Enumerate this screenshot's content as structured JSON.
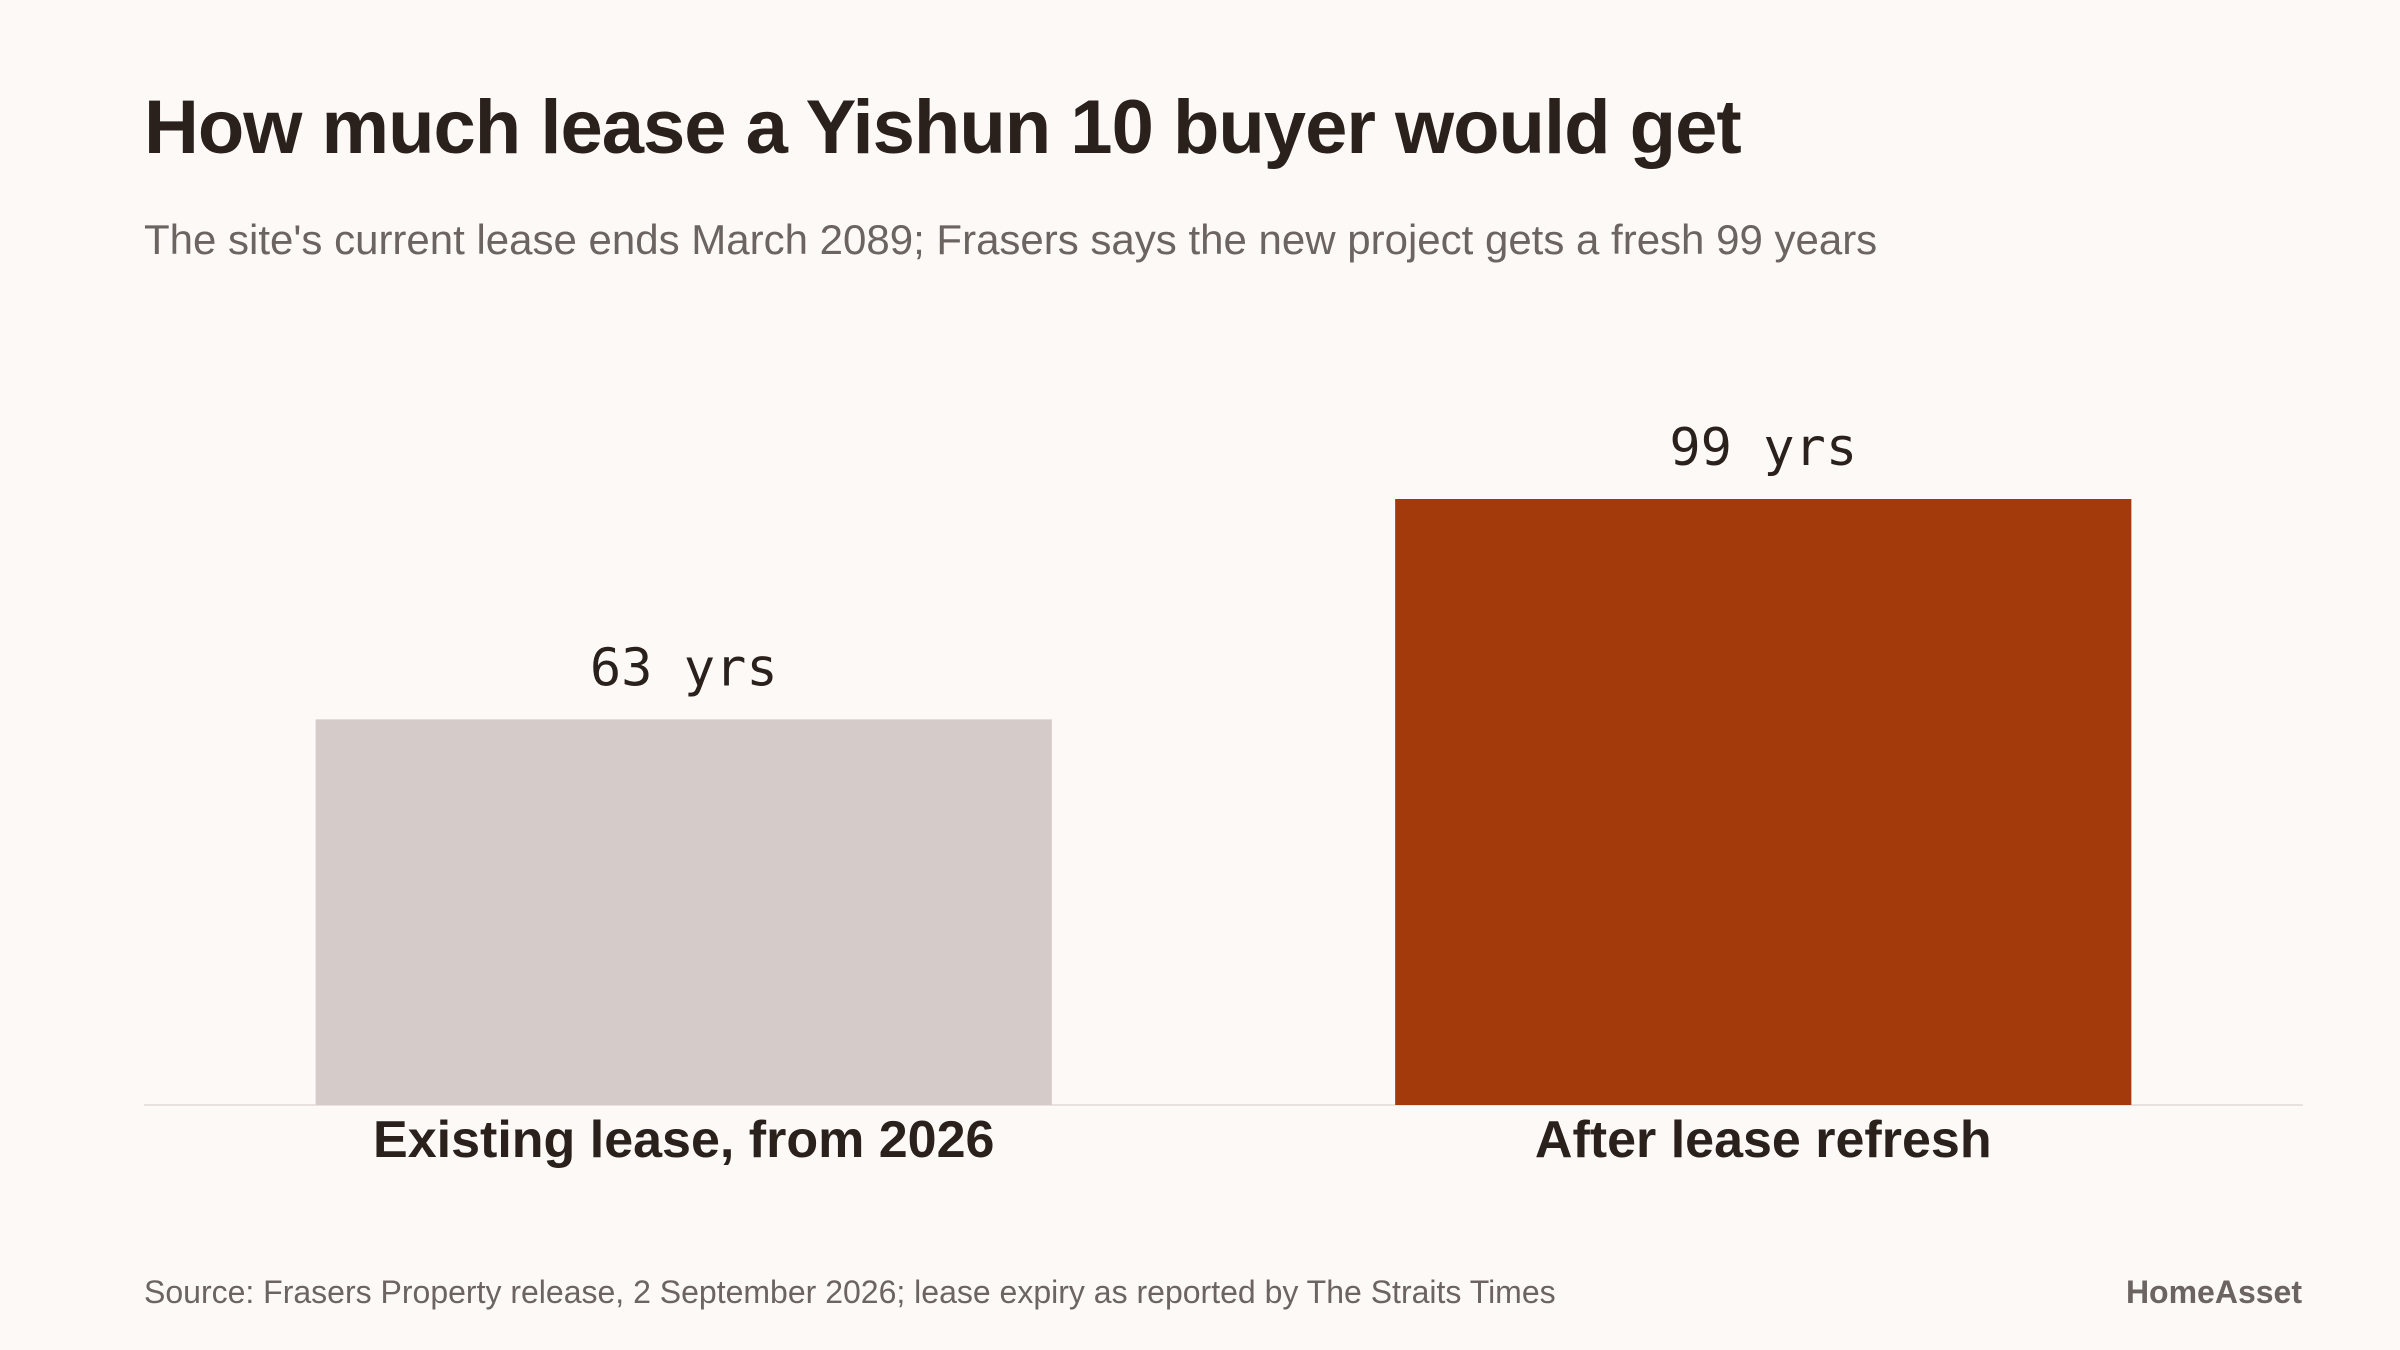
{
  "chart_data": {
    "type": "bar",
    "title": "How much lease a Yishun 10 buyer would get",
    "subtitle": "The site's current lease ends March 2089; Frasers says the new project gets a fresh 99 years",
    "categories": [
      "Existing lease, from 2026",
      "After lease refresh"
    ],
    "values": [
      63,
      99
    ],
    "value_labels": [
      "63 yrs",
      "99 yrs"
    ],
    "colors": [
      "#d5ccc9",
      "#a33a0c"
    ],
    "source": "Source: Frasers Property release, 2 September 2026; lease expiry as reported by The Straits Times",
    "brand": "HomeAsset"
  }
}
